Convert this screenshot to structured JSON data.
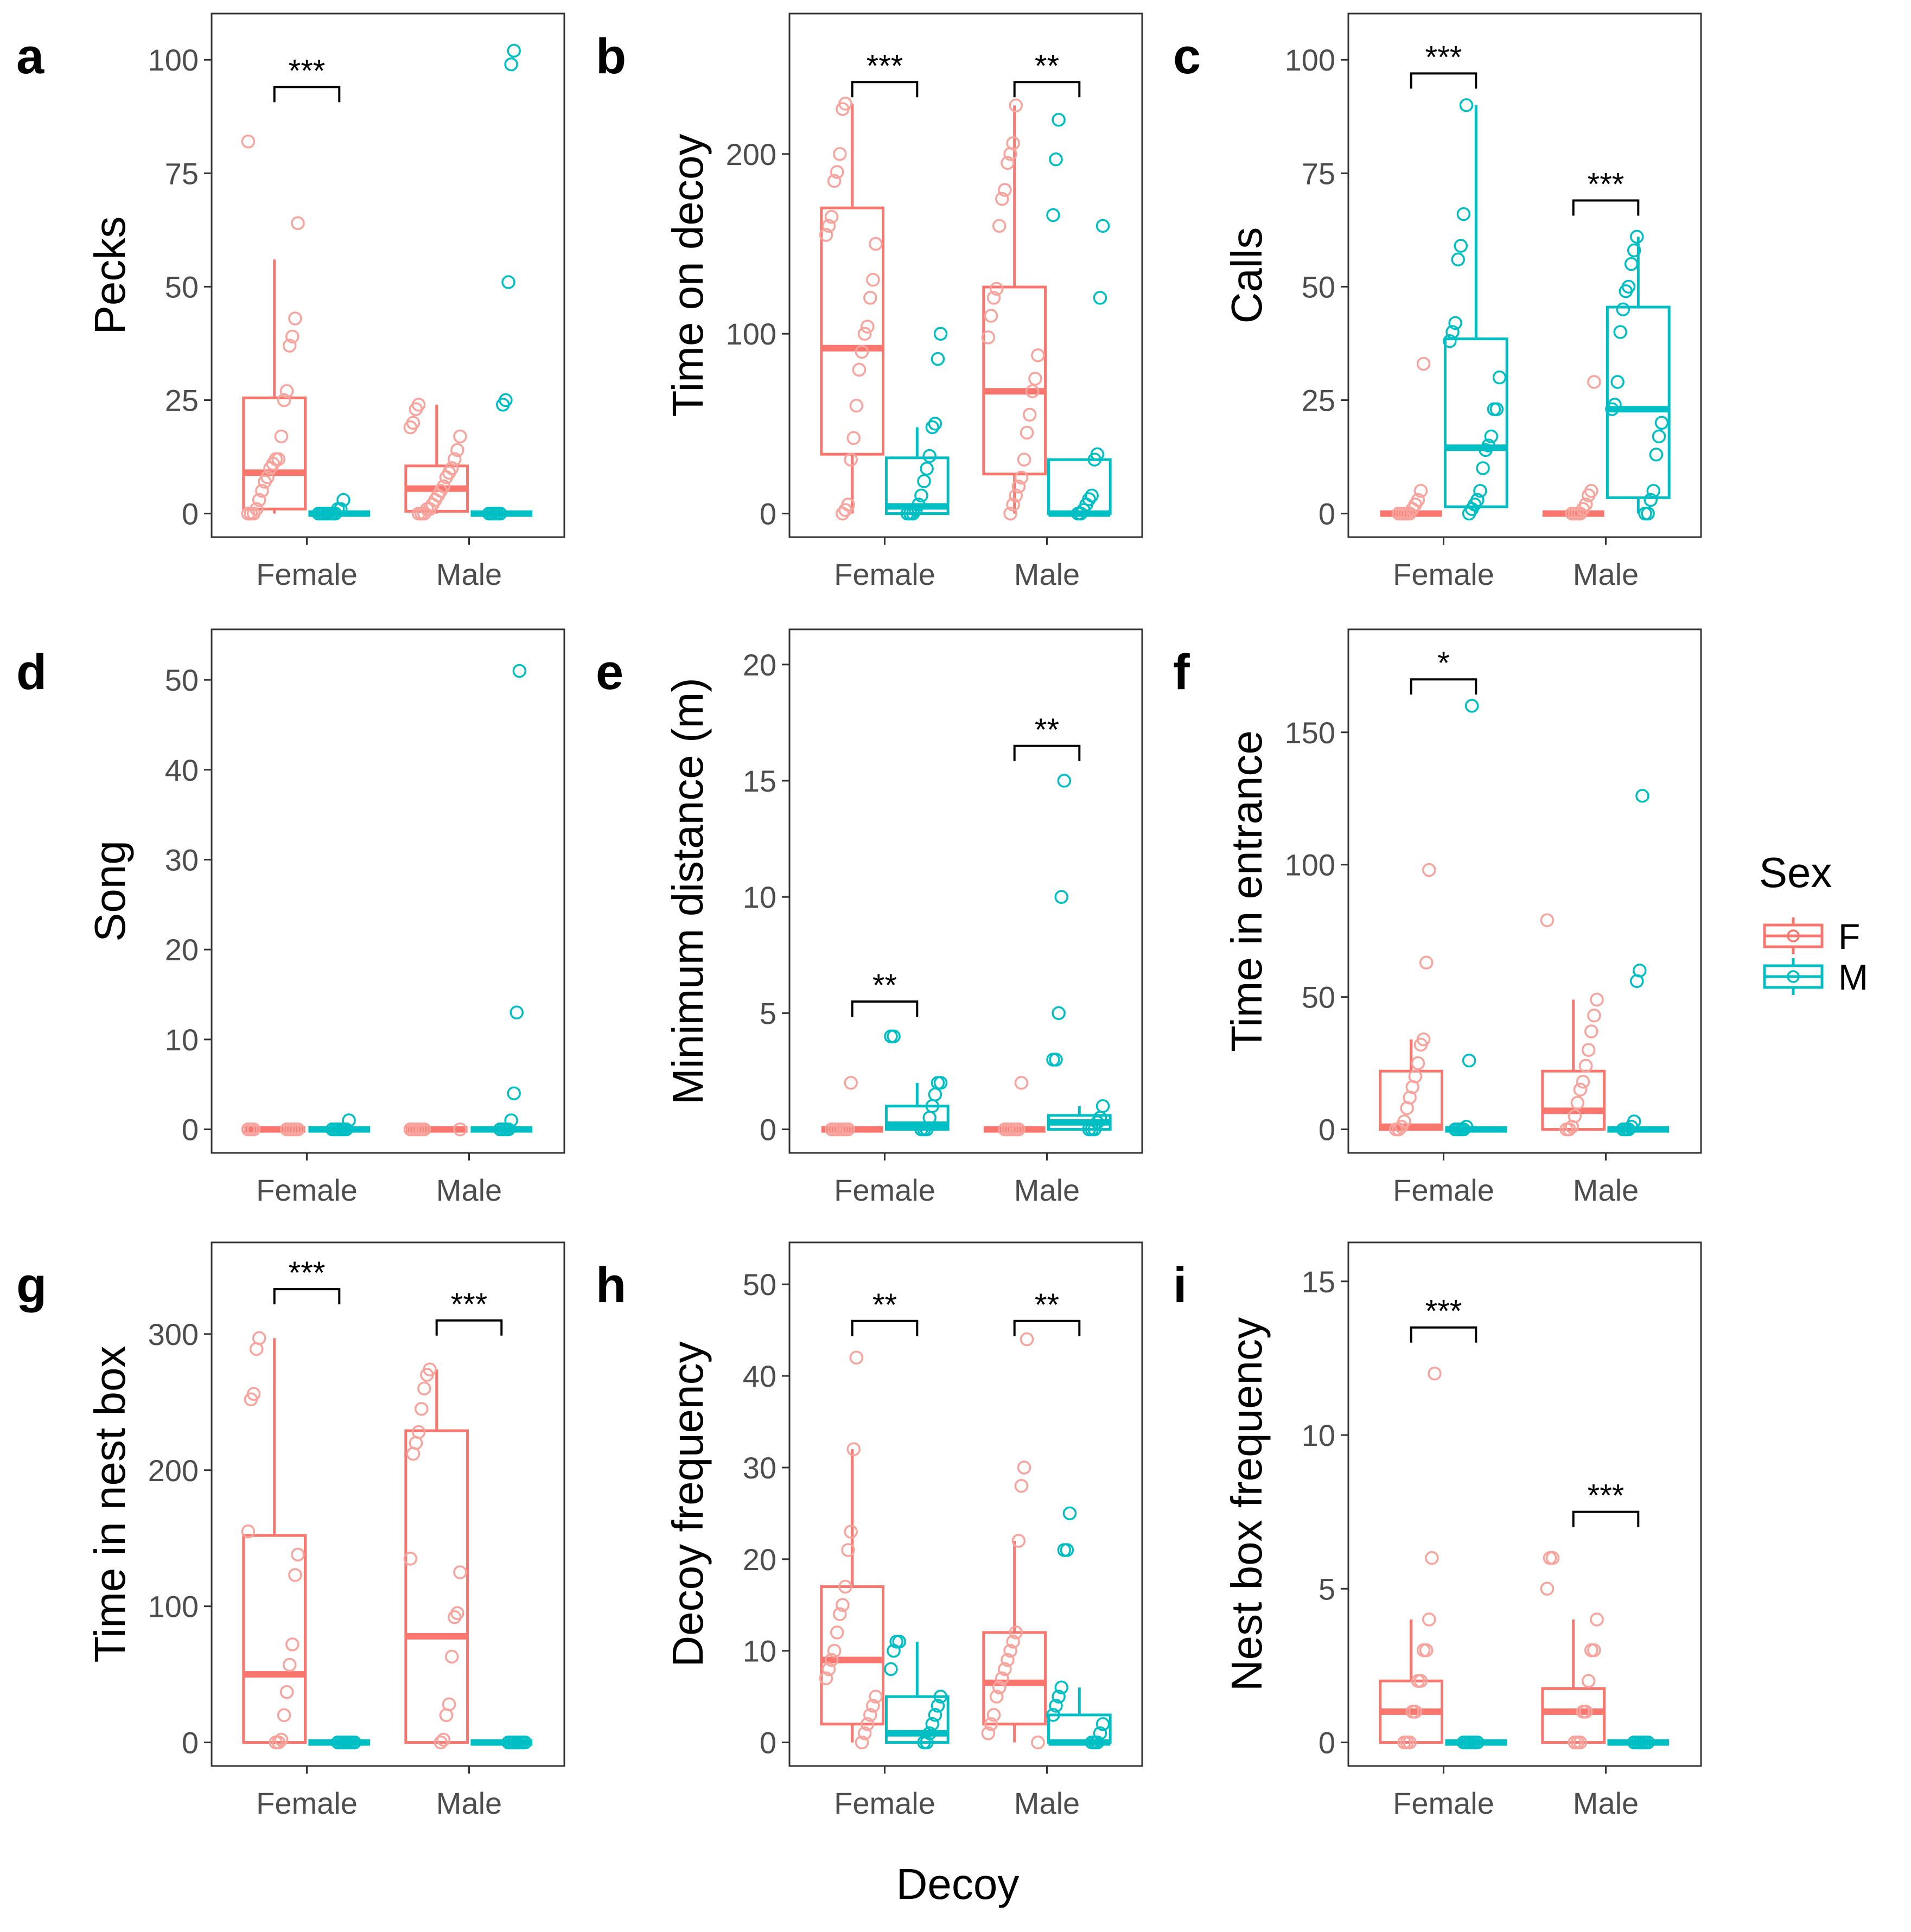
{
  "figure": {
    "shared_xlabel": "Decoy",
    "legend": {
      "title": "Sex",
      "items": [
        {
          "key": "F",
          "color": "#F8766D"
        },
        {
          "key": "M",
          "color": "#00BFC4"
        }
      ]
    }
  },
  "chart_data": [
    {
      "panel": "a",
      "type": "box",
      "ylabel": "Pecks",
      "ylim": [
        0,
        105
      ],
      "yticks": [
        0,
        25,
        50,
        75,
        100
      ],
      "categories": [
        "Female",
        "Male"
      ],
      "boxes": [
        {
          "category": "Female",
          "sex": "F",
          "whisker_low": 0,
          "q1": 1,
          "median": 9,
          "q3": 25.5,
          "whisker_high": 56,
          "points": [
            82,
            64,
            43,
            39,
            37,
            27,
            25,
            17,
            12,
            12,
            11,
            10,
            8,
            7,
            5,
            3,
            1,
            0,
            0,
            0
          ]
        },
        {
          "category": "Female",
          "sex": "M",
          "whisker_low": 0,
          "q1": 0,
          "median": 0,
          "q3": 0,
          "whisker_high": 0,
          "points": [
            3,
            1,
            1,
            0,
            0,
            0,
            0,
            0,
            0,
            0
          ]
        },
        {
          "category": "Male",
          "sex": "F",
          "whisker_low": 0,
          "q1": 0.5,
          "median": 5.5,
          "q3": 10.5,
          "whisker_high": 24,
          "points": [
            24,
            23,
            20,
            19,
            17,
            14,
            12,
            10,
            9,
            8,
            6,
            5,
            4,
            3,
            2,
            1,
            1,
            0,
            0,
            0
          ]
        },
        {
          "category": "Male",
          "sex": "M",
          "whisker_low": 0,
          "q1": 0,
          "median": 0,
          "q3": 0,
          "whisker_high": 0,
          "points": [
            102,
            99,
            51,
            25,
            24,
            0,
            0,
            0,
            0,
            0
          ]
        }
      ],
      "significance": [
        {
          "category": "Female",
          "label": "***",
          "y": 94
        }
      ]
    },
    {
      "panel": "b",
      "type": "box",
      "ylabel": "Time on decoy",
      "ylim": [
        0,
        265
      ],
      "yticks": [
        0,
        100,
        200
      ],
      "categories": [
        "Female",
        "Male"
      ],
      "boxes": [
        {
          "category": "Female",
          "sex": "F",
          "whisker_low": 0,
          "q1": 33,
          "median": 92,
          "q3": 170,
          "whisker_high": 228,
          "points": [
            228,
            225,
            200,
            190,
            185,
            165,
            160,
            155,
            150,
            130,
            120,
            104,
            100,
            90,
            80,
            60,
            42,
            30,
            5,
            2,
            0
          ]
        },
        {
          "category": "Female",
          "sex": "M",
          "whisker_low": 0,
          "q1": 0,
          "median": 4,
          "q3": 31,
          "whisker_high": 48,
          "points": [
            100,
            86,
            50,
            48,
            32,
            25,
            18,
            10,
            5,
            2,
            0,
            0,
            0
          ]
        },
        {
          "category": "Male",
          "sex": "F",
          "whisker_low": 0,
          "q1": 22,
          "median": 68,
          "q3": 126,
          "whisker_high": 227,
          "points": [
            227,
            206,
            200,
            195,
            180,
            175,
            160,
            125,
            120,
            110,
            98,
            88,
            75,
            68,
            55,
            45,
            30,
            20,
            15,
            10,
            5,
            0
          ]
        },
        {
          "category": "Male",
          "sex": "M",
          "whisker_low": 0,
          "q1": 0,
          "median": 0,
          "q3": 30,
          "whisker_high": 30,
          "points": [
            219,
            197,
            166,
            160,
            120,
            33,
            30,
            10,
            8,
            5,
            2,
            0,
            0
          ]
        }
      ],
      "significance": [
        {
          "category": "Female",
          "label": "***",
          "y": 240
        },
        {
          "category": "Male",
          "label": "**",
          "y": 240
        }
      ]
    },
    {
      "panel": "c",
      "type": "box",
      "ylabel": "Calls",
      "ylim": [
        0,
        105
      ],
      "yticks": [
        0,
        25,
        50,
        75,
        100
      ],
      "categories": [
        "Female",
        "Male"
      ],
      "boxes": [
        {
          "category": "Female",
          "sex": "F",
          "whisker_low": 0,
          "q1": 0,
          "median": 0,
          "q3": 0,
          "whisker_high": 0,
          "points": [
            33,
            5,
            3,
            2,
            1,
            0,
            0,
            0,
            0,
            0
          ]
        },
        {
          "category": "Female",
          "sex": "M",
          "whisker_low": 0,
          "q1": 1.5,
          "median": 14.5,
          "q3": 38.5,
          "whisker_high": 90,
          "points": [
            90,
            66,
            59,
            56,
            42,
            40,
            38,
            30,
            23,
            23,
            17,
            15,
            14,
            10,
            5,
            3,
            2,
            1,
            0
          ]
        },
        {
          "category": "Male",
          "sex": "F",
          "whisker_low": 0,
          "q1": 0,
          "median": 0,
          "q3": 0,
          "whisker_high": 0,
          "points": [
            29,
            5,
            4,
            2,
            1,
            0,
            0,
            0,
            0
          ]
        },
        {
          "category": "Male",
          "sex": "M",
          "whisker_low": 0,
          "q1": 3.5,
          "median": 23,
          "q3": 45.5,
          "whisker_high": 61,
          "points": [
            61,
            58,
            55,
            50,
            49,
            45,
            40,
            29,
            24,
            23,
            20,
            17,
            13,
            5,
            3,
            0,
            0
          ]
        }
      ],
      "significance": [
        {
          "category": "Female",
          "label": "***",
          "y": 97
        },
        {
          "category": "Male",
          "label": "***",
          "y": 69
        }
      ]
    },
    {
      "panel": "d",
      "type": "box",
      "ylabel": "Song",
      "ylim": [
        0,
        53
      ],
      "yticks": [
        0,
        10,
        20,
        30,
        40,
        50
      ],
      "categories": [
        "Female",
        "Male"
      ],
      "boxes": [
        {
          "category": "Female",
          "sex": "F",
          "whisker_low": 0,
          "q1": 0,
          "median": 0,
          "q3": 0,
          "whisker_high": 0,
          "points": [
            0,
            0,
            0,
            0,
            0,
            0,
            0,
            0
          ]
        },
        {
          "category": "Female",
          "sex": "M",
          "whisker_low": 0,
          "q1": 0,
          "median": 0,
          "q3": 0,
          "whisker_high": 0,
          "points": [
            1,
            0,
            0,
            0,
            0,
            0,
            0
          ]
        },
        {
          "category": "Male",
          "sex": "F",
          "whisker_low": 0,
          "q1": 0,
          "median": 0,
          "q3": 0,
          "whisker_high": 0,
          "points": [
            0,
            0,
            0,
            0,
            0,
            0,
            0
          ]
        },
        {
          "category": "Male",
          "sex": "M",
          "whisker_low": 0,
          "q1": 0,
          "median": 0,
          "q3": 0,
          "whisker_high": 0,
          "points": [
            51,
            13,
            4,
            1,
            0,
            0,
            0,
            0
          ]
        }
      ],
      "significance": []
    },
    {
      "panel": "e",
      "type": "box",
      "ylabel": "Minimum distance (m)",
      "ylim": [
        0,
        20.5
      ],
      "yticks": [
        0,
        5,
        10,
        15,
        20
      ],
      "categories": [
        "Female",
        "Male"
      ],
      "boxes": [
        {
          "category": "Female",
          "sex": "F",
          "whisker_low": 0,
          "q1": 0,
          "median": 0,
          "q3": 0,
          "whisker_high": 0,
          "points": [
            2,
            0,
            0,
            0,
            0,
            0,
            0,
            0
          ]
        },
        {
          "category": "Female",
          "sex": "M",
          "whisker_low": 0,
          "q1": 0,
          "median": 0.2,
          "q3": 1,
          "whisker_high": 2,
          "points": [
            4,
            4,
            2,
            2,
            1.5,
            1,
            0.5,
            0,
            0,
            0
          ]
        },
        {
          "category": "Male",
          "sex": "F",
          "whisker_low": 0,
          "q1": 0,
          "median": 0,
          "q3": 0,
          "whisker_high": 0,
          "points": [
            2,
            0,
            0,
            0,
            0,
            0,
            0
          ]
        },
        {
          "category": "Male",
          "sex": "M",
          "whisker_low": 0,
          "q1": 0,
          "median": 0.3,
          "q3": 0.6,
          "whisker_high": 1,
          "points": [
            15,
            10,
            5,
            3,
            3,
            1,
            0.5,
            0.3,
            0,
            0,
            0
          ]
        }
      ],
      "significance": [
        {
          "category": "Female",
          "label": "**",
          "y": 5.5
        },
        {
          "category": "Male",
          "label": "**",
          "y": 16.5
        }
      ]
    },
    {
      "panel": "f",
      "type": "box",
      "ylabel": "Time in entrance",
      "ylim": [
        0,
        180
      ],
      "yticks": [
        0,
        50,
        100,
        150
      ],
      "categories": [
        "Female",
        "Male"
      ],
      "boxes": [
        {
          "category": "Female",
          "sex": "F",
          "whisker_low": 0,
          "q1": 0,
          "median": 1,
          "q3": 22,
          "whisker_high": 34,
          "points": [
            98,
            63,
            34,
            32,
            25,
            20,
            16,
            12,
            8,
            3,
            1,
            0,
            0
          ]
        },
        {
          "category": "Female",
          "sex": "M",
          "whisker_low": 0,
          "q1": 0,
          "median": 0,
          "q3": 0,
          "whisker_high": 0,
          "points": [
            160,
            26,
            1,
            0,
            0,
            0,
            0
          ]
        },
        {
          "category": "Male",
          "sex": "F",
          "whisker_low": 0,
          "q1": 0,
          "median": 7,
          "q3": 22,
          "whisker_high": 49,
          "points": [
            79,
            49,
            43,
            37,
            30,
            24,
            18,
            15,
            10,
            5,
            1,
            0,
            0
          ]
        },
        {
          "category": "Male",
          "sex": "M",
          "whisker_low": 0,
          "q1": 0,
          "median": 0,
          "q3": 0,
          "whisker_high": 0,
          "points": [
            126,
            60,
            56,
            3,
            1,
            0,
            0,
            0
          ]
        }
      ],
      "significance": [
        {
          "category": "Female",
          "label": "*",
          "y": 170
        }
      ]
    },
    {
      "panel": "g",
      "type": "box",
      "ylabel": "Time in nest box",
      "ylim": [
        0,
        350
      ],
      "yticks": [
        0,
        100,
        200,
        300
      ],
      "categories": [
        "Female",
        "Male"
      ],
      "boxes": [
        {
          "category": "Female",
          "sex": "F",
          "whisker_low": 0,
          "q1": 0,
          "median": 50,
          "q3": 152,
          "whisker_high": 297,
          "points": [
            297,
            289,
            256,
            252,
            155,
            138,
            123,
            72,
            57,
            37,
            20,
            2,
            0,
            0
          ]
        },
        {
          "category": "Female",
          "sex": "M",
          "whisker_low": 0,
          "q1": 0,
          "median": 0,
          "q3": 0,
          "whisker_high": 0,
          "points": [
            0,
            0,
            0,
            0,
            0,
            0,
            0
          ]
        },
        {
          "category": "Male",
          "sex": "F",
          "whisker_low": 0,
          "q1": 0,
          "median": 78,
          "q3": 229,
          "whisker_high": 274,
          "points": [
            274,
            270,
            260,
            245,
            228,
            220,
            212,
            135,
            125,
            95,
            92,
            63,
            28,
            20,
            2,
            0
          ]
        },
        {
          "category": "Male",
          "sex": "M",
          "whisker_low": 0,
          "q1": 0,
          "median": 0,
          "q3": 0,
          "whisker_high": 0,
          "points": [
            0,
            0,
            0,
            0,
            0,
            0,
            0
          ]
        }
      ],
      "significance": [
        {
          "category": "Female",
          "label": "***",
          "y": 333
        },
        {
          "category": "Male",
          "label": "***",
          "y": 310
        }
      ]
    },
    {
      "panel": "h",
      "type": "box",
      "ylabel": "Decoy frequency",
      "ylim": [
        0,
        52
      ],
      "yticks": [
        0,
        10,
        20,
        30,
        40,
        50
      ],
      "categories": [
        "Female",
        "Male"
      ],
      "boxes": [
        {
          "category": "Female",
          "sex": "F",
          "whisker_low": 0,
          "q1": 2,
          "median": 9,
          "q3": 17,
          "whisker_high": 32,
          "points": [
            42,
            32,
            23,
            21,
            17,
            15,
            14,
            12,
            10,
            9,
            8,
            7,
            5,
            4,
            3,
            2,
            1,
            0
          ]
        },
        {
          "category": "Female",
          "sex": "M",
          "whisker_low": 0,
          "q1": 0,
          "median": 1,
          "q3": 5,
          "whisker_high": 11,
          "points": [
            11,
            11,
            10,
            8,
            5,
            4,
            3,
            2,
            1,
            0,
            0
          ]
        },
        {
          "category": "Male",
          "sex": "F",
          "whisker_low": 0,
          "q1": 2,
          "median": 6.5,
          "q3": 12,
          "whisker_high": 22,
          "points": [
            44,
            30,
            28,
            22,
            12,
            11,
            10,
            9,
            8,
            7,
            6,
            5,
            3,
            2,
            1,
            0
          ]
        },
        {
          "category": "Male",
          "sex": "M",
          "whisker_low": 0,
          "q1": 0,
          "median": 0,
          "q3": 3,
          "whisker_high": 6,
          "points": [
            25,
            21,
            21,
            6,
            5,
            4,
            3,
            2,
            1,
            0,
            0,
            0
          ]
        }
      ],
      "significance": [
        {
          "category": "Female",
          "label": "**",
          "y": 46
        },
        {
          "category": "Male",
          "label": "**",
          "y": 46
        }
      ]
    },
    {
      "panel": "i",
      "type": "box",
      "ylabel": "Nest box frequency",
      "ylim": [
        0,
        15.5
      ],
      "yticks": [
        0,
        5,
        10,
        15
      ],
      "categories": [
        "Female",
        "Male"
      ],
      "boxes": [
        {
          "category": "Female",
          "sex": "F",
          "whisker_low": 0,
          "q1": 0,
          "median": 1,
          "q3": 2,
          "whisker_high": 4,
          "points": [
            12,
            6,
            4,
            3,
            3,
            2,
            2,
            1,
            1,
            0,
            0,
            0
          ]
        },
        {
          "category": "Female",
          "sex": "M",
          "whisker_low": 0,
          "q1": 0,
          "median": 0,
          "q3": 0,
          "whisker_high": 0,
          "points": [
            0,
            0,
            0,
            0,
            0,
            0
          ]
        },
        {
          "category": "Male",
          "sex": "F",
          "whisker_low": 0,
          "q1": 0,
          "median": 1,
          "q3": 1.75,
          "whisker_high": 4,
          "points": [
            6,
            6,
            5,
            4,
            3,
            3,
            2,
            1,
            1,
            0,
            0,
            0
          ]
        },
        {
          "category": "Male",
          "sex": "M",
          "whisker_low": 0,
          "q1": 0,
          "median": 0,
          "q3": 0,
          "whisker_high": 0,
          "points": [
            0,
            0,
            0,
            0,
            0,
            0
          ]
        }
      ],
      "significance": [
        {
          "category": "Female",
          "label": "***",
          "y": 13.5
        },
        {
          "category": "Male",
          "label": "***",
          "y": 7.5
        }
      ]
    }
  ]
}
